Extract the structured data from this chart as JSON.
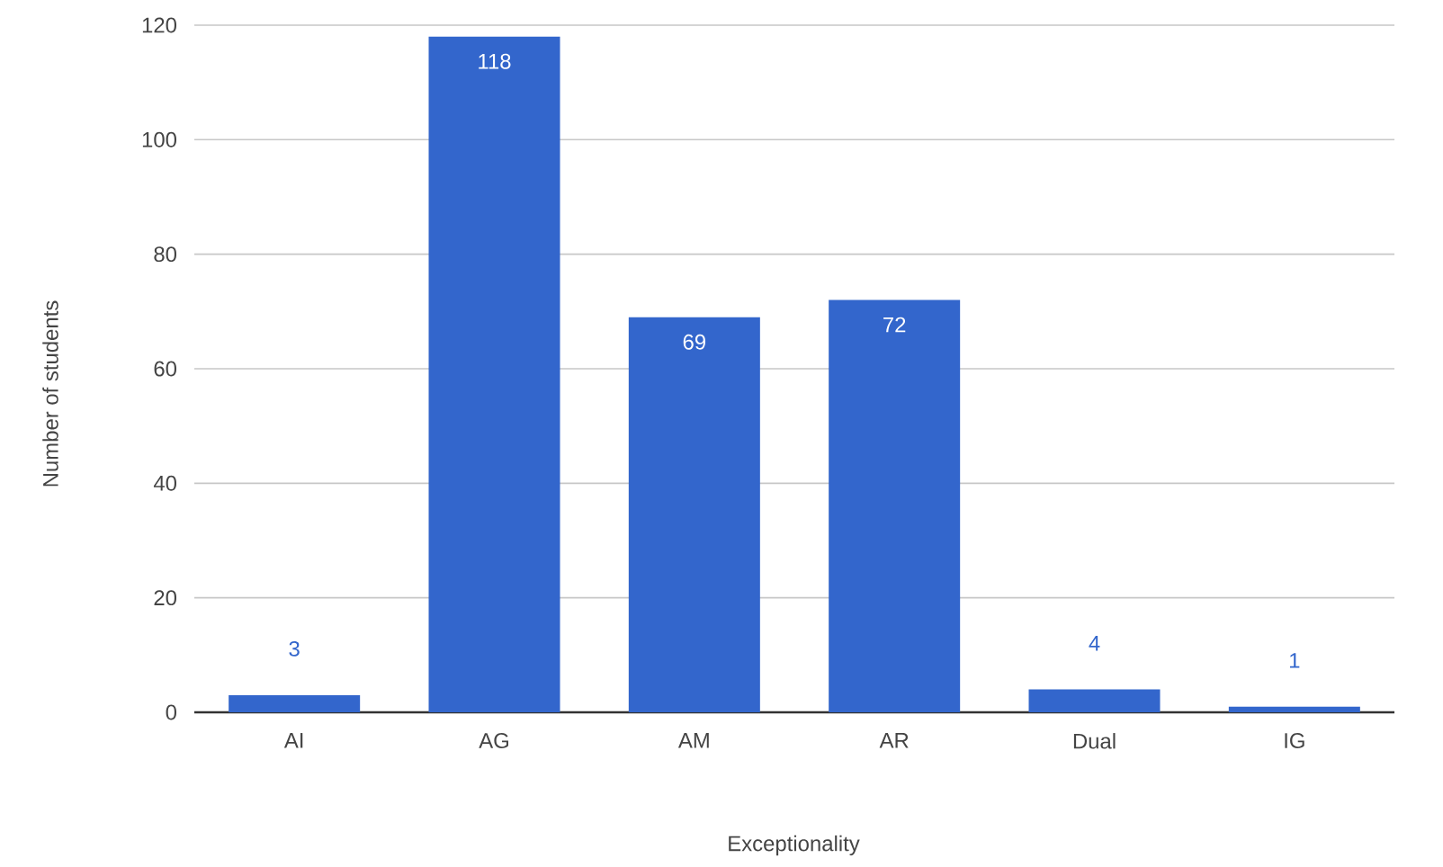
{
  "chart_data": {
    "type": "bar",
    "xlabel": "Exceptionality",
    "ylabel": "Number of students",
    "categories": [
      "AI",
      "AG",
      "AM",
      "AR",
      "Dual",
      "IG"
    ],
    "values": [
      3,
      118,
      69,
      72,
      4,
      1
    ],
    "color": "#3366cc",
    "ylim": [
      0,
      120
    ],
    "yticks": [
      0,
      20,
      40,
      60,
      80,
      100,
      120
    ],
    "grid": "y",
    "data_labels": true
  }
}
